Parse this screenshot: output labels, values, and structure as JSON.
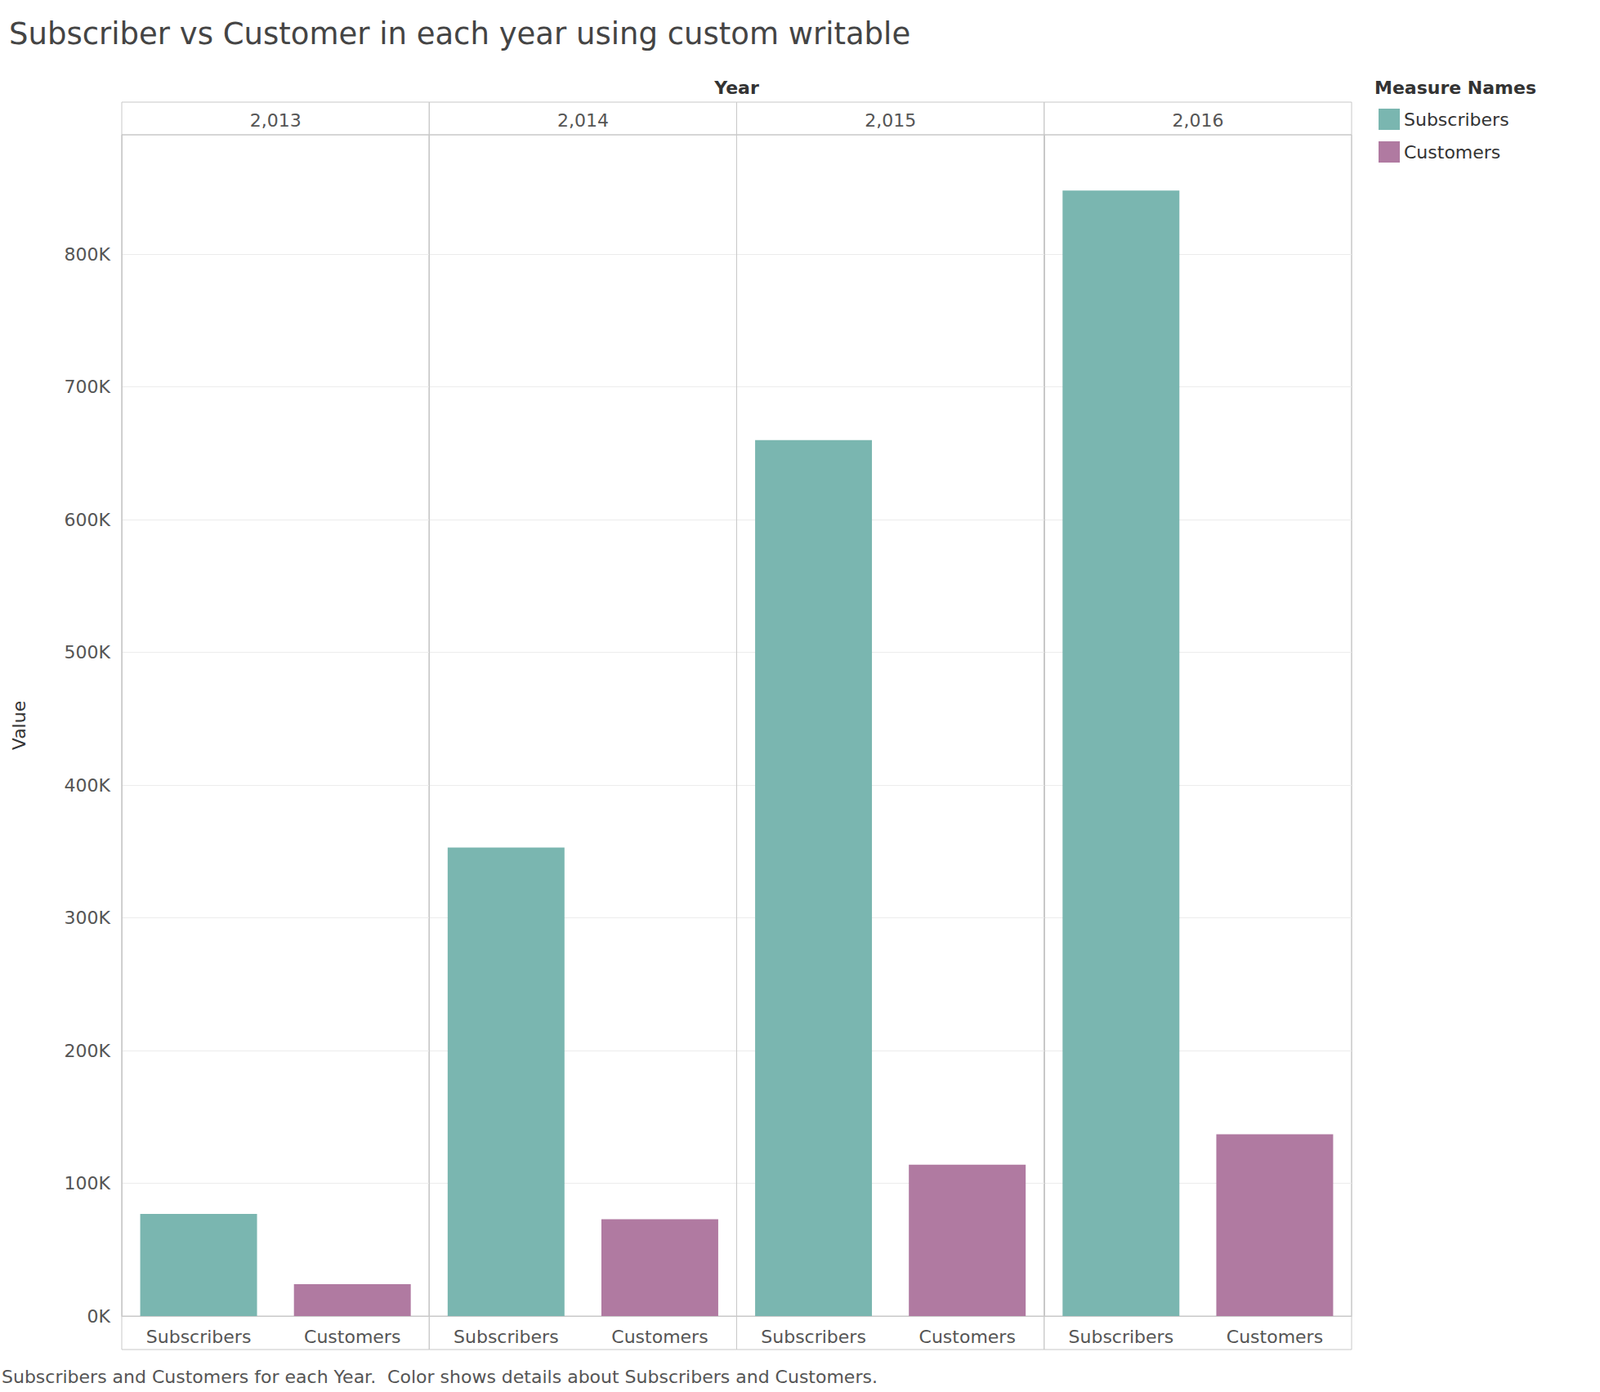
{
  "chart_data": {
    "type": "bar",
    "title": "Subscriber vs Customer in each year using custom writable",
    "xlabel": "Year",
    "ylabel": "Value",
    "caption": "Subscribers and Customers for each Year.  Color shows details about Subscribers and Customers.",
    "legend_title": "Measure Names",
    "legend": "right",
    "categories": [
      "2,013",
      "2,014",
      "2,015",
      "2,016"
    ],
    "series": [
      {
        "name": "Subscribers",
        "color": "#7ab6b0",
        "values": [
          77000,
          353000,
          660000,
          848000
        ]
      },
      {
        "name": "Customers",
        "color": "#b07aa1",
        "values": [
          24000,
          73000,
          114000,
          137000
        ]
      }
    ],
    "ylim": [
      0,
      890000
    ],
    "yticks": [
      {
        "value": 0,
        "label": "0K"
      },
      {
        "value": 100000,
        "label": "100K"
      },
      {
        "value": 200000,
        "label": "200K"
      },
      {
        "value": 300000,
        "label": "300K"
      },
      {
        "value": 400000,
        "label": "400K"
      },
      {
        "value": 500000,
        "label": "500K"
      },
      {
        "value": 600000,
        "label": "600K"
      },
      {
        "value": 700000,
        "label": "700K"
      },
      {
        "value": 800000,
        "label": "800K"
      }
    ],
    "grid": true
  }
}
